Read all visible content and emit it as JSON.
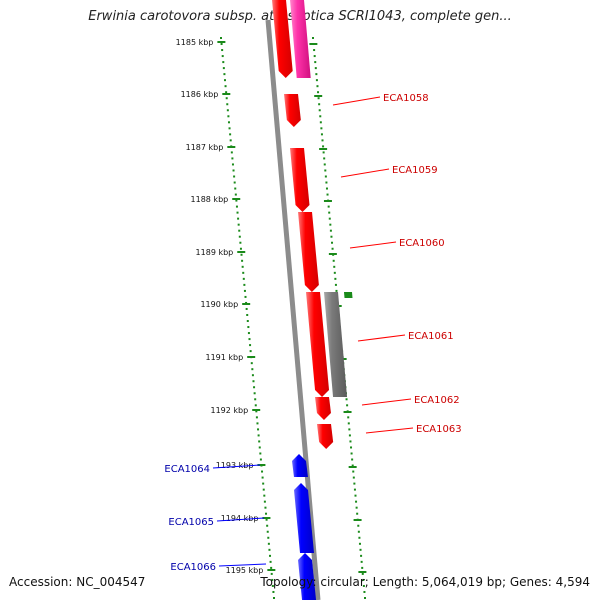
{
  "title": "Erwinia carotovora subsp. atroseptica SCRI1043, complete gen...",
  "accession_text": "Accession: NC_004547",
  "topology_text": "Topology: circular; Length: 5,064,019 bp; Genes: 4,594",
  "colors": {
    "tick": "#1a8a1a",
    "backbone": "#8c8c8c",
    "forward_gene": "#ff0000",
    "reverse_gene": "#0000ff",
    "pseudo_gene": "#777777",
    "pink_gene": "#ff33aa",
    "forward_label": "#cc0000",
    "reverse_label": "#0000aa"
  },
  "scale_labels": [
    "1185 kbp",
    "1186 kbp",
    "1187 kbp",
    "1188 kbp",
    "1189 kbp",
    "1190 kbp",
    "1191 kbp",
    "1192 kbp",
    "1193 kbp",
    "1194 kbp",
    "1195 kbp"
  ],
  "forward_labels": [
    "ECA1058",
    "ECA1059",
    "ECA1060",
    "ECA1061",
    "ECA1062",
    "ECA1063"
  ],
  "reverse_labels": [
    "ECA1064",
    "ECA1065",
    "ECA1066"
  ]
}
